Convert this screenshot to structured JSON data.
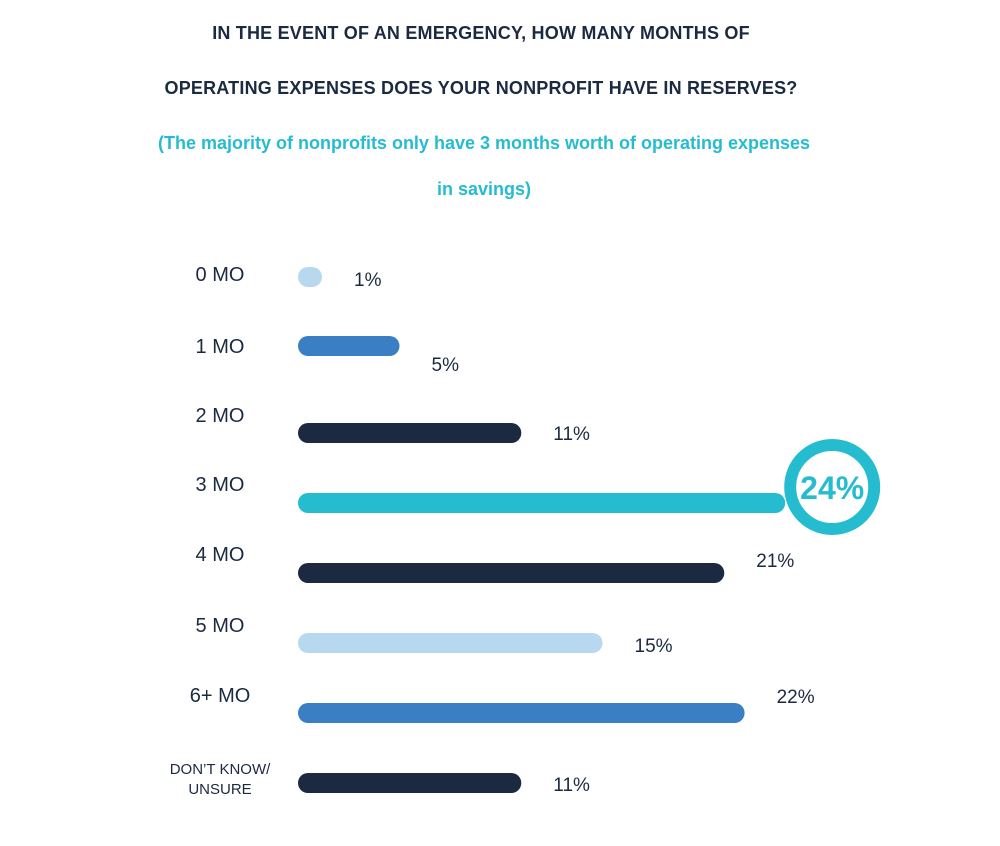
{
  "title_line1": "IN THE EVENT OF AN EMERGENCY, HOW MANY MONTHS OF",
  "title_line2": "OPERATING EXPENSES DOES YOUR NONPROFIT HAVE IN RESERVES?",
  "subtitle_line1": "(The majority of nonprofits only have 3 months worth of operating expenses",
  "subtitle_line2": "in savings)",
  "colors": {
    "title": "#1b2a41",
    "subtitle": "#26bcd0",
    "light_blue": "#b8d8f0",
    "mid_blue": "#3a7fc4",
    "navy": "#1b2a41",
    "teal": "#26bcd0"
  },
  "chart_data": {
    "type": "bar",
    "orientation": "horizontal",
    "categories": [
      "0 MO",
      "1 MO",
      "2 MO",
      "3 MO",
      "4 MO",
      "5 MO",
      "6+ MO",
      "DON’T KNOW/\nUNSURE"
    ],
    "values": [
      1,
      5,
      11,
      24,
      21,
      15,
      22,
      11
    ],
    "value_labels": [
      "1%",
      "5%",
      "11%",
      "24%",
      "21%",
      "15%",
      "22%",
      "11%"
    ],
    "bar_colors": [
      "#b8d8f0",
      "#3a7fc4",
      "#1b2a41",
      "#26bcd0",
      "#1b2a41",
      "#b8d8f0",
      "#3a7fc4",
      "#1b2a41"
    ],
    "highlight_index": 3,
    "unit": "%",
    "xlim": [
      0,
      24
    ]
  }
}
